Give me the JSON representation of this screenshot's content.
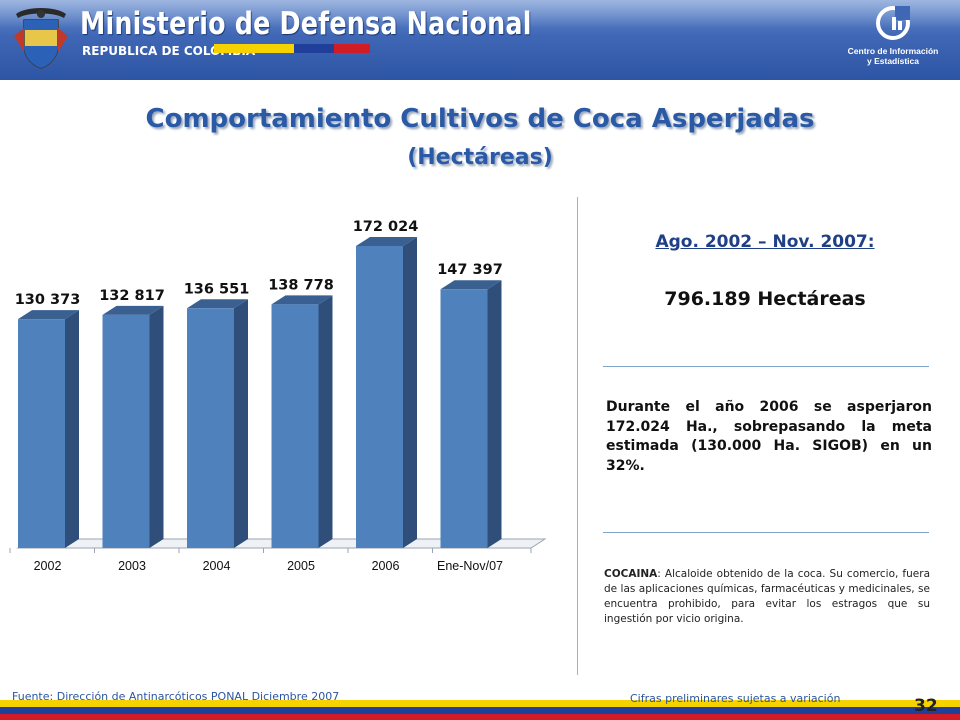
{
  "header": {
    "ministry": "Ministerio de Defensa Nacional",
    "republic": "REPUBLICA DE COLOMBIA",
    "center_line1": "Centro de Información",
    "center_line2": "y Estadística",
    "emblem_icon": "colombia-coat-of-arms-icon",
    "center_icon": "cie-logo-icon",
    "colors": {
      "header_blue": "#3f67b5",
      "flag_yellow": "#f6d300",
      "flag_blue": "#1f3f9a",
      "flag_red": "#d01c24"
    }
  },
  "title": "Comportamiento Cultivos de Coca Asperjadas",
  "subtitle": "(Hectáreas)",
  "chart_data": {
    "type": "bar",
    "categories": [
      "2002",
      "2003",
      "2004",
      "2005",
      "2006",
      "Ene-Nov/07"
    ],
    "values": [
      130373,
      132817,
      136551,
      138778,
      172024,
      147397
    ],
    "data_labels": [
      "130 373",
      "132 817",
      "136 551",
      "138 778",
      "172 024",
      "147 397"
    ],
    "title": "",
    "xlabel": "",
    "ylabel": "",
    "grid": false,
    "legend": false,
    "bar_color": "#4f81bd"
  },
  "summary": {
    "period": "Ago. 2002 – Nov. 2007:",
    "total": "796.189 Hectáreas",
    "description": "Durante el año 2006 se asperjaron 172.024 Ha., sobrepasando la meta estimada (130.000 Ha. SIGOB) en un  32%.",
    "note_term": "COCAINA",
    "note_text": ":  Alcaloide obtenido de la coca. Su comercio, fuera de las aplicaciones químicas, farmacéuticas y medicinales, se encuentra prohibido, para evitar los estragos que su ingestión por vicio origina."
  },
  "footer": {
    "source": "Fuente: Dirección de Antinarcóticos PONAL Diciembre 2007",
    "preliminary": "Cifras preliminares sujetas a variación",
    "page_number": "32"
  }
}
